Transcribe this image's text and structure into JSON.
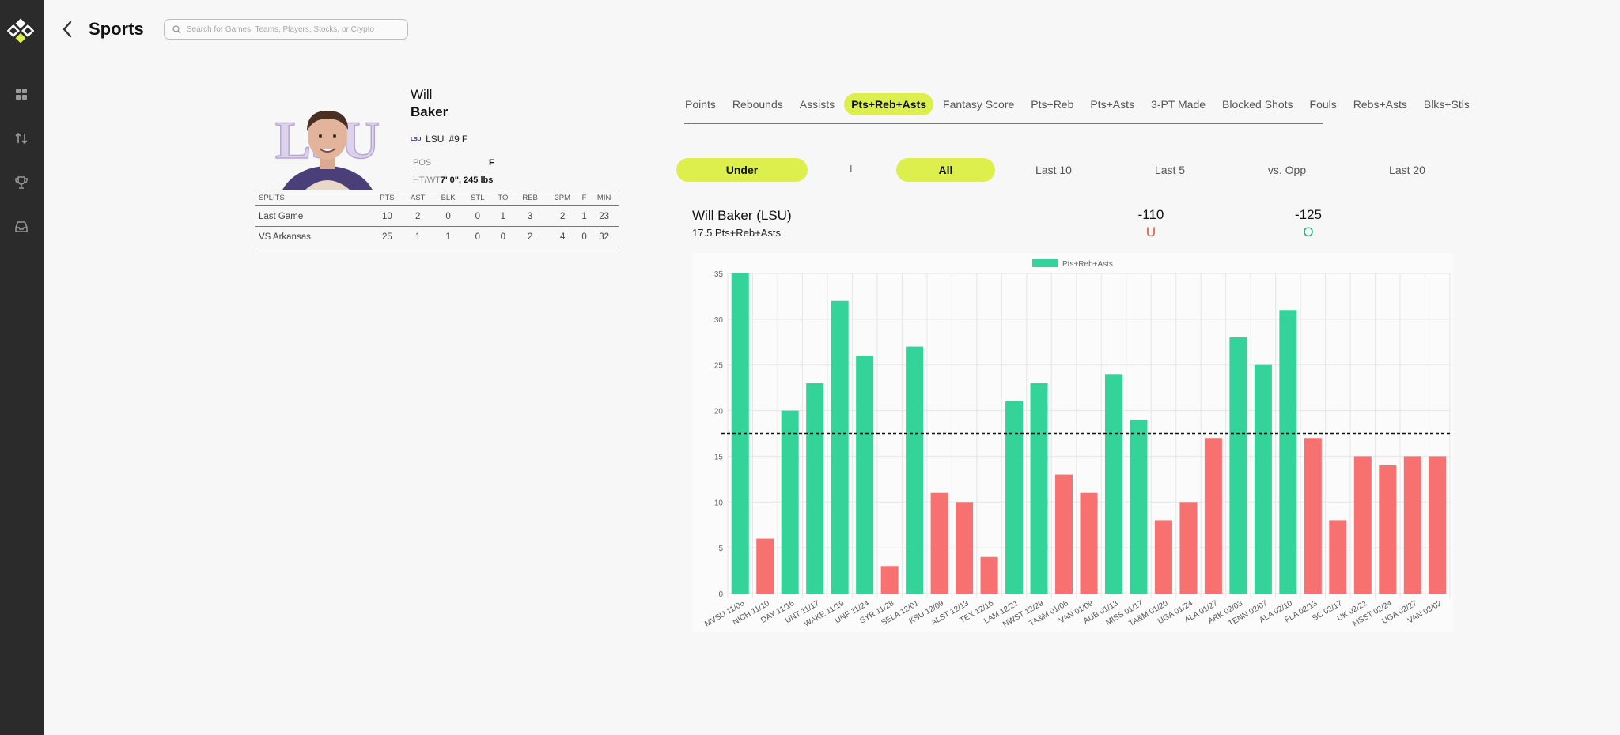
{
  "app": {
    "title": "Sports",
    "search_placeholder": "Search for Games, Teams, Players, Stocks, or Crypto"
  },
  "sidebar": {
    "items": [
      {
        "icon": "grid-icon"
      },
      {
        "icon": "arrows-up-down-icon"
      },
      {
        "icon": "trophy-icon"
      },
      {
        "icon": "inbox-icon"
      }
    ]
  },
  "player": {
    "first_name": "Will",
    "last_name": "Baker",
    "team_logo": "LSU",
    "team": "LSU",
    "number": "#9",
    "position_short": "F",
    "pos_label": "POS",
    "pos_value": "F",
    "htwt_label": "HT/WT",
    "htwt_value": "7' 0\", 245 lbs",
    "photo_logo_text": "LSU"
  },
  "splits": {
    "headers": [
      "SPLITS",
      "PTS",
      "AST",
      "BLK",
      "STL",
      "TO",
      "REB",
      "3PM",
      "F",
      "MIN"
    ],
    "rows": [
      [
        "Last Game",
        "10",
        "2",
        "0",
        "0",
        "1",
        "3",
        "2",
        "1",
        "23"
      ],
      [
        "VS Arkansas",
        "25",
        "1",
        "1",
        "0",
        "0",
        "2",
        "4",
        "0",
        "32"
      ]
    ]
  },
  "stat_tabs": [
    "Points",
    "Rebounds",
    "Assists",
    "Pts+Reb+Asts",
    "Fantasy Score",
    "Pts+Reb",
    "Pts+Asts",
    "3-PT Made",
    "Blocked Shots",
    "Fouls",
    "Rebs+Asts",
    "Blks+Stls"
  ],
  "active_stat_tab": "Pts+Reb+Asts",
  "filters": {
    "side": "Under",
    "divider": "I",
    "range_active": "All",
    "ranges": [
      "Last 10",
      "Last 5",
      "vs. Opp",
      "Last 20"
    ]
  },
  "line": {
    "player_label": "Will Baker  (LSU)",
    "description": "17.5 Pts+Reb+Asts",
    "under_odds": "-110",
    "under_label": "U",
    "over_odds": "-125",
    "over_label": "O"
  },
  "colors": {
    "accent": "#dcef4d",
    "over": "#34d399",
    "under": "#f87171",
    "sidebar": "#2b2b2b"
  },
  "chart_data": {
    "type": "bar",
    "legend": "Pts+Reb+Asts",
    "legend_position": "top",
    "categories": [
      "MVSU 11/06",
      "NICH 11/10",
      "DAY 11/16",
      "UNT 11/17",
      "WAKE 11/19",
      "UNF 11/24",
      "SYR 11/28",
      "SELA 12/01",
      "KSU 12/09",
      "ALST 12/13",
      "TEX 12/16",
      "LAM 12/21",
      "NWST 12/29",
      "TA&M 01/06",
      "VAN 01/09",
      "AUB 01/13",
      "MISS 01/17",
      "TA&M 01/20",
      "UGA 01/24",
      "ALA 01/27",
      "ARK 02/03",
      "TENN 02/07",
      "ALA 02/10",
      "FLA 02/13",
      "SC 02/17",
      "UK 02/21",
      "MSST 02/24",
      "UGA 02/27",
      "VAN 03/02"
    ],
    "values": [
      35,
      6,
      20,
      23,
      32,
      26,
      3,
      27,
      11,
      10,
      4,
      21,
      23,
      13,
      11,
      24,
      19,
      8,
      10,
      17,
      28,
      25,
      31,
      17,
      8,
      15,
      14,
      15,
      15
    ],
    "line_value": 17.5,
    "ylim": [
      0,
      35
    ],
    "yticks": [
      0,
      5,
      10,
      15,
      20,
      25,
      30,
      35
    ],
    "grid": true
  }
}
